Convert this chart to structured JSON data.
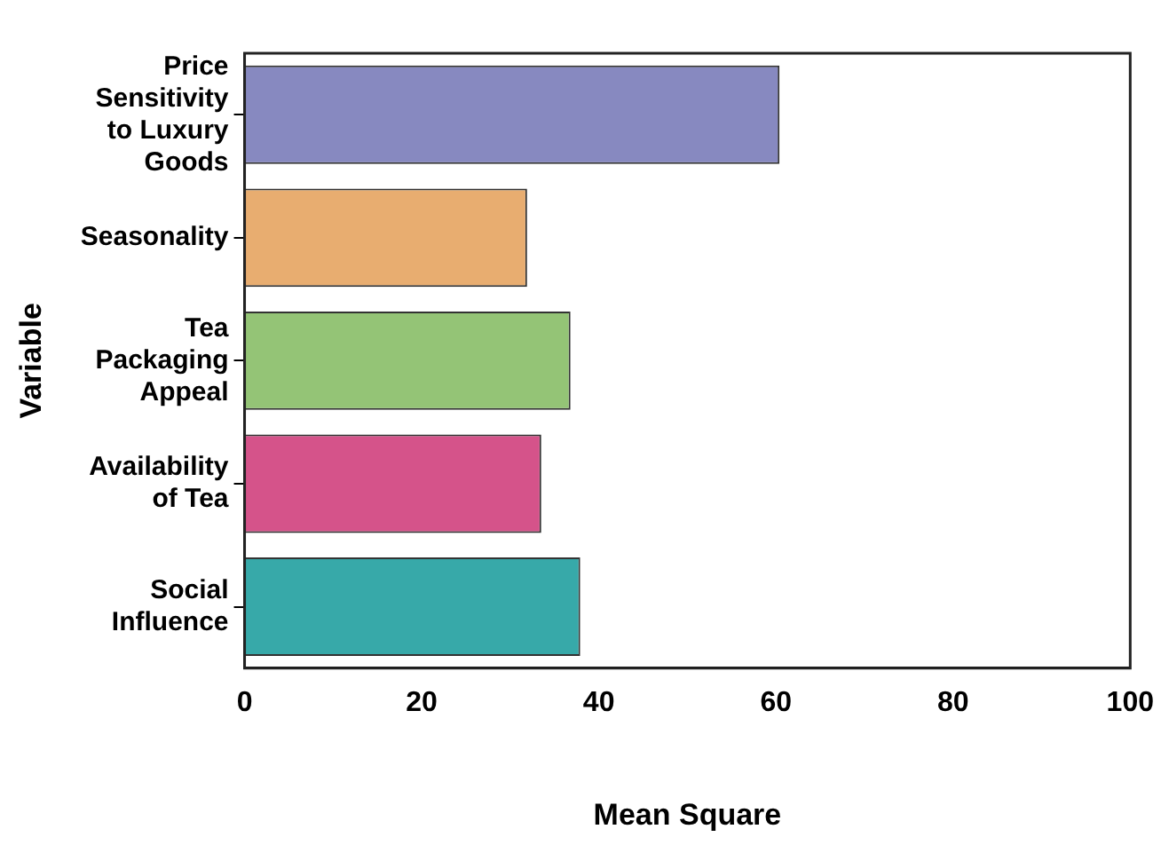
{
  "chart_data": {
    "type": "bar",
    "orientation": "horizontal",
    "categories": [
      "Price Sensitivity to Luxury Goods",
      "Seasonality",
      "Tea Packaging Appeal",
      "Availability of Tea",
      "Social Influence"
    ],
    "values": [
      60.4,
      31.9,
      36.8,
      33.5,
      37.9
    ],
    "colors": [
      "#8789c0",
      "#e8ad70",
      "#94c476",
      "#d5538a",
      "#37a9a9"
    ],
    "xlabel": "Mean Square",
    "ylabel": "Variable",
    "xlim": [
      0,
      100
    ],
    "xticks": [
      0,
      20,
      40,
      60,
      80,
      100
    ],
    "grid": false,
    "legend": false
  }
}
